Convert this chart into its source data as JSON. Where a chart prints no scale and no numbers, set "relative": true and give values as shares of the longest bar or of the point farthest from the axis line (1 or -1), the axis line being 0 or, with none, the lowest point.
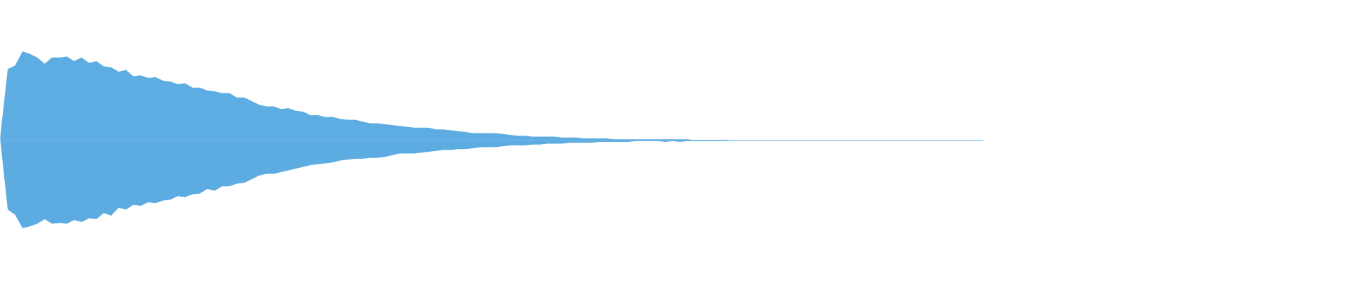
{
  "chart_data": {
    "type": "area",
    "relative": true,
    "categories": [
      null,
      null,
      null,
      null,
      null,
      null,
      null,
      null,
      null,
      null,
      null,
      null,
      null,
      null,
      null,
      null,
      null,
      null,
      null,
      null,
      null,
      null,
      null,
      null,
      null,
      null,
      null,
      null,
      null,
      null,
      null,
      null,
      null,
      null,
      null,
      null,
      null,
      null,
      null,
      null,
      null,
      null,
      null,
      null,
      null,
      null,
      null,
      null,
      null,
      null,
      null,
      null,
      null,
      null,
      null,
      null,
      null,
      null,
      null,
      null,
      null,
      null,
      null,
      null,
      null,
      null,
      null,
      null,
      null,
      null,
      null,
      null,
      null,
      null,
      null,
      null,
      null,
      null,
      null,
      null,
      null,
      null,
      null,
      null,
      null,
      null,
      null,
      null,
      null,
      null,
      null,
      null,
      null,
      null,
      null,
      null,
      null,
      null,
      null,
      null,
      null,
      null,
      null,
      null,
      null,
      null,
      null,
      null,
      null,
      null,
      null,
      null,
      null,
      null,
      null,
      null,
      null,
      null,
      null,
      null,
      null,
      null,
      null,
      null,
      null,
      null,
      null,
      null,
      null,
      null,
      null,
      null,
      null,
      null
    ],
    "series": [
      {
        "color": "#5dade2",
        "values": [
          0.05,
          0.8,
          0.84,
          1.0,
          0.97,
          0.93,
          0.86,
          0.93,
          0.93,
          0.94,
          0.89,
          0.93,
          0.87,
          0.89,
          0.83,
          0.82,
          0.77,
          0.79,
          0.72,
          0.73,
          0.7,
          0.71,
          0.67,
          0.66,
          0.63,
          0.64,
          0.59,
          0.59,
          0.56,
          0.55,
          0.53,
          0.53,
          0.48,
          0.48,
          0.44,
          0.4,
          0.38,
          0.38,
          0.35,
          0.36,
          0.33,
          0.32,
          0.28,
          0.28,
          0.26,
          0.26,
          0.24,
          0.23,
          0.23,
          0.21,
          0.19,
          0.19,
          0.18,
          0.17,
          0.16,
          0.15,
          0.14,
          0.14,
          0.14,
          0.12,
          0.12,
          0.11,
          0.1,
          0.09,
          0.08,
          0.08,
          0.08,
          0.08,
          0.07,
          0.06,
          0.05,
          0.05,
          0.04,
          0.04,
          0.04,
          0.04,
          0.03,
          0.03,
          0.03,
          0.02,
          0.02,
          0.02,
          0.02,
          0.01,
          0.01,
          0.01,
          0.01,
          0.01,
          0.01,
          0.01,
          0.01,
          0.01,
          0.01,
          0.01,
          0,
          0,
          0,
          0,
          0,
          0,
          0,
          0,
          0,
          0,
          0,
          0,
          0,
          0,
          0,
          0,
          0,
          0,
          0,
          0,
          0,
          0,
          0,
          0,
          0,
          0,
          0,
          0,
          0,
          0,
          0,
          0,
          0,
          0,
          0,
          0,
          0,
          0,
          0,
          0
        ]
      },
      {
        "color": "#5cace1",
        "values": [
          -0.01,
          -0.78,
          -0.84,
          -0.99,
          -0.97,
          -0.94,
          -0.89,
          -0.94,
          -0.93,
          -0.94,
          -0.9,
          -0.92,
          -0.88,
          -0.89,
          -0.82,
          -0.85,
          -0.76,
          -0.78,
          -0.73,
          -0.74,
          -0.7,
          -0.71,
          -0.68,
          -0.67,
          -0.63,
          -0.64,
          -0.61,
          -0.6,
          -0.55,
          -0.57,
          -0.52,
          -0.52,
          -0.49,
          -0.48,
          -0.44,
          -0.4,
          -0.38,
          -0.38,
          -0.36,
          -0.34,
          -0.32,
          -0.3,
          -0.28,
          -0.27,
          -0.26,
          -0.25,
          -0.23,
          -0.22,
          -0.21,
          -0.21,
          -0.2,
          -0.2,
          -0.19,
          -0.17,
          -0.15,
          -0.15,
          -0.15,
          -0.14,
          -0.13,
          -0.12,
          -0.11,
          -0.11,
          -0.1,
          -0.1,
          -0.09,
          -0.08,
          -0.08,
          -0.08,
          -0.07,
          -0.06,
          -0.06,
          -0.06,
          -0.05,
          -0.05,
          -0.04,
          -0.04,
          -0.04,
          -0.03,
          -0.03,
          -0.03,
          -0.03,
          -0.02,
          -0.02,
          -0.02,
          -0.02,
          -0.02,
          -0.01,
          -0.01,
          -0.01,
          -0.01,
          -0.02,
          -0.01,
          -0.02,
          -0.01,
          -0.01,
          -0.01,
          -0.01,
          -0.01,
          -0.01,
          0,
          0,
          0,
          0,
          0,
          0,
          0,
          0,
          0,
          0,
          0,
          0,
          0,
          0,
          0,
          0,
          0,
          0,
          0,
          0,
          0,
          0,
          0,
          0,
          0,
          0,
          0,
          0,
          0,
          0,
          0,
          0,
          0,
          0,
          0
        ]
      }
    ]
  }
}
